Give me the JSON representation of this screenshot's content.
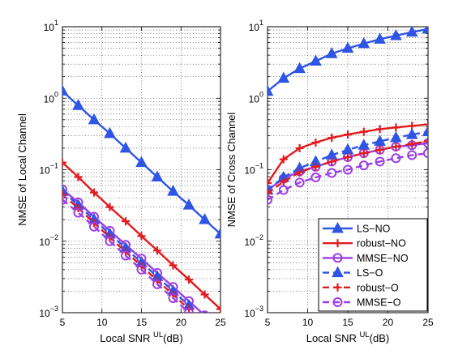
{
  "figure": {
    "legend_entries": [
      {
        "name": "LS−NO",
        "color": "#2e55e6",
        "dash": "solid",
        "marker": "triangle"
      },
      {
        "name": "robust−NO",
        "color": "#e31a1c",
        "dash": "solid",
        "marker": "plus"
      },
      {
        "name": "MMSE−NO",
        "color": "#9b3ee6",
        "dash": "solid",
        "marker": "circle"
      },
      {
        "name": "LS−O",
        "color": "#2e55e6",
        "dash": "dashed",
        "marker": "triangle"
      },
      {
        "name": "robust−O",
        "color": "#e31a1c",
        "dash": "dashed",
        "marker": "plus"
      },
      {
        "name": "MMSE−O",
        "color": "#9b3ee6",
        "dash": "dashed",
        "marker": "circle"
      }
    ]
  },
  "chart_data": [
    {
      "type": "line",
      "xlabel_main": "Local SNR",
      "xlabel_sup": "UL",
      "xlabel_tail": "(dB)",
      "ylabel": "NMSE of Local Channel",
      "yscale": "log",
      "xlim": [
        5,
        25
      ],
      "ylim": [
        0.001,
        10
      ],
      "grid": true,
      "x_ticks": [
        "5",
        "10",
        "15",
        "20",
        "25"
      ],
      "y_ticks": [
        {
          "base": "10",
          "exp": "1"
        },
        {
          "base": "10",
          "exp": "0"
        },
        {
          "base": "10",
          "exp": "−1"
        },
        {
          "base": "10",
          "exp": "−2"
        },
        {
          "base": "10",
          "exp": "−3"
        }
      ],
      "x": [
        5,
        7,
        9,
        11,
        13,
        15,
        17,
        19,
        21,
        23,
        25
      ],
      "series": [
        {
          "name": "LS−NO",
          "values": [
            1.26,
            0.79,
            0.5,
            0.32,
            0.2,
            0.126,
            0.079,
            0.05,
            0.032,
            0.02,
            0.0126
          ]
        },
        {
          "name": "robust−NO",
          "values": [
            0.126,
            0.079,
            0.048,
            0.03,
            0.019,
            0.0118,
            0.0074,
            0.0046,
            0.0029,
            0.0018,
            0.00112
          ]
        },
        {
          "name": "MMSE−NO",
          "values": [
            0.053,
            0.035,
            0.022,
            0.014,
            0.0089,
            0.0057,
            0.0036,
            0.0023,
            0.00145,
            0.00092,
            null
          ]
        },
        {
          "name": "LS−O",
          "values": [
            0.05,
            0.032,
            0.02,
            0.0126,
            0.008,
            0.005,
            0.0032,
            0.002,
            0.00126,
            null,
            null
          ]
        },
        {
          "name": "robust−O",
          "values": [
            0.045,
            0.029,
            0.018,
            0.0113,
            0.0071,
            0.0045,
            0.0028,
            0.0018,
            0.00112,
            null,
            null
          ]
        },
        {
          "name": "MMSE−O",
          "values": [
            0.038,
            0.025,
            0.016,
            0.01,
            0.0063,
            0.004,
            0.0025,
            0.0016,
            0.001,
            null,
            null
          ]
        }
      ]
    },
    {
      "type": "line",
      "xlabel_main": "Local SNR",
      "xlabel_sup": "UL",
      "xlabel_tail": "(dB)",
      "ylabel": "NMSE of Cross Channel",
      "yscale": "log",
      "xlim": [
        5,
        25
      ],
      "ylim": [
        0.001,
        10
      ],
      "grid": true,
      "legend_position": "bottom-right",
      "x_ticks": [
        "5",
        "10",
        "15",
        "20",
        "25"
      ],
      "y_ticks": [
        {
          "base": "10",
          "exp": "1"
        },
        {
          "base": "10",
          "exp": "0"
        },
        {
          "base": "10",
          "exp": "−1"
        },
        {
          "base": "10",
          "exp": "−2"
        },
        {
          "base": "10",
          "exp": "−3"
        }
      ],
      "x": [
        5,
        7,
        9,
        11,
        13,
        15,
        17,
        19,
        21,
        23,
        25
      ],
      "series": [
        {
          "name": "LS−NO",
          "values": [
            1.25,
            1.9,
            2.6,
            3.3,
            4.2,
            5.0,
            5.8,
            6.7,
            7.5,
            8.4,
            9.3
          ]
        },
        {
          "name": "robust−NO",
          "values": [
            0.065,
            0.14,
            0.2,
            0.24,
            0.28,
            0.31,
            0.34,
            0.37,
            0.39,
            0.41,
            0.43
          ]
        },
        {
          "name": "MMSE−NO",
          "values": [
            0.052,
            0.075,
            0.095,
            0.11,
            0.13,
            0.15,
            0.17,
            0.19,
            0.21,
            0.22,
            0.235
          ]
        },
        {
          "name": "LS−O",
          "values": [
            0.052,
            0.078,
            0.105,
            0.13,
            0.16,
            0.19,
            0.22,
            0.25,
            0.28,
            0.31,
            0.34
          ]
        },
        {
          "name": "robust−O",
          "values": [
            0.047,
            0.068,
            0.092,
            0.11,
            0.13,
            0.15,
            0.17,
            0.19,
            0.21,
            0.23,
            0.25
          ]
        },
        {
          "name": "MMSE−O",
          "values": [
            0.038,
            0.052,
            0.066,
            0.078,
            0.09,
            0.1,
            0.115,
            0.13,
            0.145,
            0.16,
            0.17
          ]
        }
      ]
    }
  ]
}
